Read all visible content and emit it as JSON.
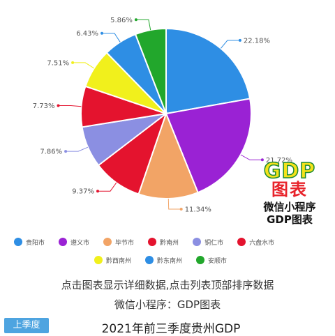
{
  "chart_data": {
    "type": "pie",
    "title": "2021年前三季度贵州GDP",
    "categories": [
      "贵阳市",
      "遵义市",
      "毕节市",
      "黔南州",
      "铜仁市",
      "六盘水市",
      "黔西南州",
      "黔东南州",
      "安顺市"
    ],
    "values": [
      22.18,
      21.72,
      11.34,
      9.37,
      7.86,
      7.73,
      7.51,
      6.43,
      5.86
    ],
    "labels": [
      "22.18%",
      "21.72%",
      "11.34%",
      "9.37%",
      "7.86%",
      "7.73%",
      "7.51%",
      "6.43%",
      "5.86%"
    ],
    "colors": [
      "#2e8ee4",
      "#9a22d4",
      "#f2a466",
      "#e4132e",
      "#8b8fe2",
      "#e4132e",
      "#f1f01c",
      "#2e8ee4",
      "#22a72c"
    ],
    "legend_position": "bottom"
  },
  "legend": {
    "items": [
      {
        "label": "贵阳市",
        "color": "#2e8ee4"
      },
      {
        "label": "遵义市",
        "color": "#9a22d4"
      },
      {
        "label": "毕节市",
        "color": "#f2a466"
      },
      {
        "label": "黔南州",
        "color": "#e4132e"
      },
      {
        "label": "铜仁市",
        "color": "#8b8fe2"
      },
      {
        "label": "六盘水市",
        "color": "#e4132e"
      },
      {
        "label": "黔西南州",
        "color": "#f1f01c"
      },
      {
        "label": "黔东南州",
        "color": "#2e8ee4"
      },
      {
        "label": "安顺市",
        "color": "#22a72c"
      }
    ]
  },
  "watermark": {
    "big": "GDP",
    "big2": "图表",
    "line1": "微信小程序",
    "line2": "GDP图表"
  },
  "footer": {
    "hint": "点击图表显示详细数据,点击列表顶部排序数据",
    "miniapp": "微信小程序：GDP图表",
    "season_button": "上季度",
    "title": "2021年前三季度贵州GDP"
  }
}
